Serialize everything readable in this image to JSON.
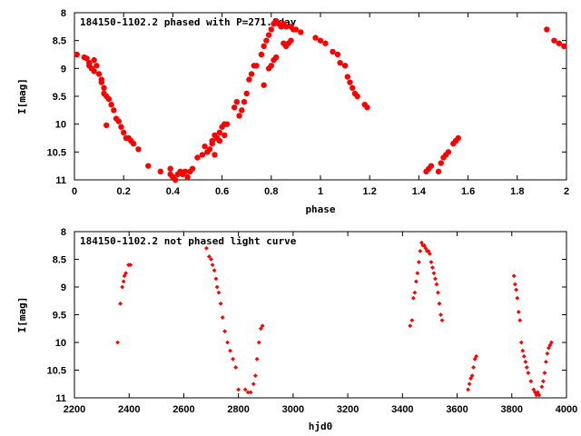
{
  "chart_data": [
    {
      "type": "scatter",
      "title": "184150-1102.2 phased with P=271.0day",
      "xlabel": "phase",
      "ylabel": "I[mag]",
      "xlim": [
        0,
        2
      ],
      "ylim": [
        11,
        8
      ],
      "y_inverted": true,
      "grid": false,
      "marker_color": "#ff0000",
      "marker": "filled-circle",
      "xticks": [
        "0",
        "0.2",
        "0.4",
        "0.6",
        "0.8",
        "1",
        "1.2",
        "1.4",
        "1.6",
        "1.8",
        "2"
      ],
      "yticks": [
        "8",
        "8.5",
        "9",
        "9.5",
        "10",
        "10.5",
        "11"
      ],
      "series": [
        {
          "points": [
            [
              0.01,
              8.75
            ],
            [
              0.04,
              8.8
            ],
            [
              0.05,
              8.82
            ],
            [
              0.06,
              8.9
            ],
            [
              0.06,
              8.95
            ],
            [
              0.07,
              9.0
            ],
            [
              0.08,
              8.85
            ],
            [
              0.08,
              9.05
            ],
            [
              0.09,
              8.95
            ],
            [
              0.1,
              9.1
            ],
            [
              0.11,
              9.2
            ],
            [
              0.11,
              9.25
            ],
            [
              0.12,
              9.45
            ],
            [
              0.12,
              9.35
            ],
            [
              0.13,
              9.5
            ],
            [
              0.13,
              10.02
            ],
            [
              0.14,
              9.55
            ],
            [
              0.15,
              9.65
            ],
            [
              0.16,
              9.75
            ],
            [
              0.17,
              9.9
            ],
            [
              0.18,
              9.95
            ],
            [
              0.19,
              10.05
            ],
            [
              0.2,
              10.15
            ],
            [
              0.21,
              10.25
            ],
            [
              0.22,
              10.25
            ],
            [
              0.23,
              10.3
            ],
            [
              0.24,
              10.35
            ],
            [
              0.26,
              10.45
            ],
            [
              0.3,
              10.75
            ],
            [
              0.35,
              10.85
            ],
            [
              0.39,
              10.8
            ],
            [
              0.39,
              10.9
            ],
            [
              0.4,
              10.95
            ],
            [
              0.41,
              11.0
            ],
            [
              0.42,
              10.9
            ],
            [
              0.43,
              10.85
            ],
            [
              0.44,
              10.9
            ],
            [
              0.45,
              10.85
            ],
            [
              0.46,
              10.95
            ],
            [
              0.47,
              10.85
            ],
            [
              0.48,
              10.8
            ],
            [
              0.5,
              10.6
            ],
            [
              0.52,
              10.55
            ],
            [
              0.53,
              10.4
            ],
            [
              0.54,
              10.5
            ],
            [
              0.55,
              10.45
            ],
            [
              0.56,
              10.35
            ],
            [
              0.56,
              10.3
            ],
            [
              0.57,
              10.2
            ],
            [
              0.57,
              10.55
            ],
            [
              0.58,
              10.25
            ],
            [
              0.59,
              10.15
            ],
            [
              0.59,
              10.3
            ],
            [
              0.6,
              10.05
            ],
            [
              0.61,
              10.0
            ],
            [
              0.61,
              10.2
            ],
            [
              0.62,
              10.0
            ],
            [
              0.65,
              9.7
            ],
            [
              0.66,
              9.6
            ],
            [
              0.67,
              9.85
            ],
            [
              0.68,
              9.75
            ],
            [
              0.69,
              9.6
            ],
            [
              0.7,
              9.45
            ],
            [
              0.71,
              9.2
            ],
            [
              0.72,
              9.1
            ],
            [
              0.73,
              8.95
            ],
            [
              0.74,
              8.95
            ],
            [
              0.76,
              8.75
            ],
            [
              0.77,
              9.3
            ],
            [
              0.77,
              8.6
            ],
            [
              0.78,
              8.5
            ],
            [
              0.79,
              9.0
            ],
            [
              0.79,
              8.4
            ],
            [
              0.8,
              8.95
            ],
            [
              0.8,
              8.3
            ],
            [
              0.81,
              8.85
            ],
            [
              0.81,
              8.2
            ],
            [
              0.82,
              8.8
            ],
            [
              0.82,
              8.15
            ],
            [
              0.83,
              8.2
            ],
            [
              0.84,
              8.25
            ],
            [
              0.85,
              8.55
            ],
            [
              0.85,
              8.2
            ],
            [
              0.86,
              8.6
            ],
            [
              0.86,
              8.25
            ],
            [
              0.87,
              8.55
            ],
            [
              0.88,
              8.25
            ],
            [
              0.88,
              8.5
            ],
            [
              0.89,
              8.3
            ],
            [
              0.9,
              8.3
            ],
            [
              0.92,
              8.35
            ],
            [
              0.98,
              8.45
            ],
            [
              1.0,
              8.5
            ],
            [
              1.02,
              8.55
            ],
            [
              1.05,
              8.7
            ],
            [
              1.07,
              8.75
            ],
            [
              1.08,
              8.9
            ],
            [
              1.1,
              8.95
            ],
            [
              1.11,
              9.15
            ],
            [
              1.12,
              9.25
            ],
            [
              1.13,
              9.35
            ],
            [
              1.14,
              9.45
            ],
            [
              1.15,
              9.5
            ],
            [
              1.18,
              9.65
            ],
            [
              1.19,
              9.7
            ],
            [
              1.43,
              10.85
            ],
            [
              1.44,
              10.8
            ],
            [
              1.45,
              10.75
            ],
            [
              1.48,
              10.85
            ],
            [
              1.49,
              10.7
            ],
            [
              1.5,
              10.6
            ],
            [
              1.51,
              10.55
            ],
            [
              1.52,
              10.5
            ],
            [
              1.54,
              10.35
            ],
            [
              1.55,
              10.3
            ],
            [
              1.56,
              10.25
            ],
            [
              1.92,
              8.3
            ],
            [
              1.95,
              8.5
            ],
            [
              1.97,
              8.55
            ],
            [
              1.99,
              8.6
            ]
          ]
        }
      ]
    },
    {
      "type": "scatter",
      "title": "184150-1102.2 not phased light curve",
      "xlabel": "hjd0",
      "ylabel": "I[mag]",
      "xlim": [
        2200,
        4000
      ],
      "ylim": [
        11,
        8
      ],
      "y_inverted": true,
      "grid": false,
      "marker_color": "#ff0000",
      "marker": "filled-diamond",
      "xticks": [
        "2200",
        "2400",
        "2600",
        "2800",
        "3000",
        "3200",
        "3400",
        "3600",
        "3800",
        "4000"
      ],
      "yticks": [
        "8",
        "8.5",
        "9",
        "9.5",
        "10",
        "10.5",
        "11"
      ],
      "series": [
        {
          "points": [
            [
              2358,
              10.0
            ],
            [
              2368,
              9.3
            ],
            [
              2375,
              9.0
            ],
            [
              2380,
              8.9
            ],
            [
              2383,
              8.8
            ],
            [
              2388,
              8.75
            ],
            [
              2398,
              8.6
            ],
            [
              2405,
              8.6
            ],
            [
              2683,
              8.3
            ],
            [
              2693,
              8.45
            ],
            [
              2700,
              8.5
            ],
            [
              2705,
              8.6
            ],
            [
              2712,
              8.7
            ],
            [
              2718,
              8.85
            ],
            [
              2722,
              9.0
            ],
            [
              2728,
              9.1
            ],
            [
              2735,
              9.3
            ],
            [
              2742,
              9.55
            ],
            [
              2750,
              9.8
            ],
            [
              2760,
              10.0
            ],
            [
              2770,
              10.15
            ],
            [
              2780,
              10.3
            ],
            [
              2790,
              10.45
            ],
            [
              2800,
              10.85
            ],
            [
              2825,
              10.85
            ],
            [
              2835,
              10.9
            ],
            [
              2845,
              10.9
            ],
            [
              2855,
              10.75
            ],
            [
              2862,
              10.6
            ],
            [
              2868,
              10.3
            ],
            [
              2875,
              10.0
            ],
            [
              2882,
              9.75
            ],
            [
              2888,
              9.7
            ],
            [
              3428,
              9.7
            ],
            [
              3435,
              9.6
            ],
            [
              3440,
              9.2
            ],
            [
              3445,
              9.1
            ],
            [
              3450,
              8.9
            ],
            [
              3455,
              8.75
            ],
            [
              3460,
              8.55
            ],
            [
              3465,
              8.35
            ],
            [
              3470,
              8.2
            ],
            [
              3475,
              8.25
            ],
            [
              3480,
              8.25
            ],
            [
              3485,
              8.3
            ],
            [
              3490,
              8.35
            ],
            [
              3495,
              8.35
            ],
            [
              3500,
              8.4
            ],
            [
              3505,
              8.55
            ],
            [
              3510,
              8.65
            ],
            [
              3515,
              8.75
            ],
            [
              3520,
              8.85
            ],
            [
              3525,
              8.95
            ],
            [
              3530,
              9.1
            ],
            [
              3535,
              9.3
            ],
            [
              3540,
              9.5
            ],
            [
              3545,
              9.6
            ],
            [
              3640,
              10.85
            ],
            [
              3645,
              10.75
            ],
            [
              3650,
              10.65
            ],
            [
              3655,
              10.6
            ],
            [
              3660,
              10.45
            ],
            [
              3665,
              10.3
            ],
            [
              3670,
              10.25
            ],
            [
              3808,
              8.8
            ],
            [
              3812,
              8.95
            ],
            [
              3816,
              9.05
            ],
            [
              3820,
              9.2
            ],
            [
              3825,
              9.45
            ],
            [
              3830,
              9.6
            ],
            [
              3835,
              10.0
            ],
            [
              3840,
              10.15
            ],
            [
              3845,
              10.25
            ],
            [
              3850,
              10.35
            ],
            [
              3855,
              10.45
            ],
            [
              3860,
              10.55
            ],
            [
              3870,
              10.7
            ],
            [
              3880,
              10.85
            ],
            [
              3885,
              10.9
            ],
            [
              3890,
              10.95
            ],
            [
              3895,
              10.9
            ],
            [
              3900,
              10.95
            ],
            [
              3910,
              10.8
            ],
            [
              3915,
              10.7
            ],
            [
              3920,
              10.55
            ],
            [
              3925,
              10.35
            ],
            [
              3930,
              10.2
            ],
            [
              3935,
              10.1
            ],
            [
              3940,
              10.05
            ],
            [
              3945,
              10.0
            ]
          ]
        }
      ]
    }
  ]
}
